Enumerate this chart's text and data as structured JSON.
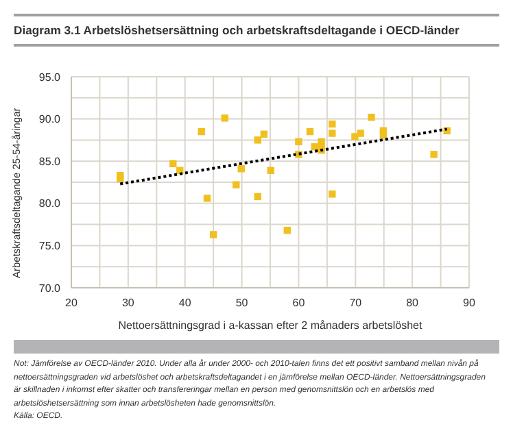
{
  "chart_data": {
    "type": "scatter",
    "title": "Diagram 3.1 Arbetslöshetsersättning och arbetskraftsdeltagande i OECD-länder",
    "xlabel": "Nettoersättningsgrad i a-kassan efter 2 månaders arbetslöshet",
    "ylabel": "Arbetskraftsdeltagande 25-54-åringar",
    "annotations": [
      "Not: Jämförelse av OECD-länder 2010. Under alla år under 2000- och 2010-talen finns det ett positivt samband mellan nivån på nettoersättningsgraden vid arbetslöshet och arbetskraftsdeltagandet i en jämförelse mellan OECD-länder. Nettoersättningsgraden är skillnaden i inkomst efter skatter och transfereringar mellan en person med genomsnittslön och en arbetslös med arbetslöshetsersättning som innan arbetslösheten hade genomsnittslön.",
      "Källa: OECD."
    ],
    "xlim": [
      20,
      90
    ],
    "xticks": [
      20,
      {
        "value": 25,
        "label": null
      },
      30,
      {
        "value": 35,
        "label": null
      },
      40,
      {
        "value": 45,
        "label": null
      },
      50,
      {
        "value": 55,
        "label": null
      },
      60,
      {
        "value": 65,
        "label": null
      },
      70,
      {
        "value": 75,
        "label": null
      },
      80,
      {
        "value": 85,
        "label": null
      },
      90
    ],
    "ylim": [
      70,
      95
    ],
    "yticks": [
      {
        "value": 70,
        "label": "70.0"
      },
      {
        "value": 72.5,
        "label": null
      },
      {
        "value": 75,
        "label": "75.0"
      },
      {
        "value": 77.5,
        "label": null
      },
      {
        "value": 80,
        "label": "80.0"
      },
      {
        "value": 82.5,
        "label": null
      },
      {
        "value": 85,
        "label": "85.0"
      },
      {
        "value": 87.5,
        "label": null
      },
      {
        "value": 90,
        "label": "90.0"
      },
      {
        "value": 92.5,
        "label": null
      },
      {
        "value": 95,
        "label": "95.0"
      }
    ],
    "grid": true,
    "marker": "square",
    "series": [
      {
        "type": "scatter",
        "color": "#f0c020",
        "x": [
          28.6,
          28.6,
          37.9,
          39.1,
          42.9,
          43.9,
          45.0,
          47.0,
          49.0,
          49.9,
          52.8,
          52.8,
          53.9,
          55.1,
          58.0,
          60.0,
          60.0,
          62.0,
          62.8,
          64.0,
          64.0,
          65.9,
          65.9,
          65.9,
          69.9,
          70.9,
          72.8,
          74.9,
          74.9,
          83.8,
          86.1,
          64.0
        ],
        "values": [
          83.3,
          82.9,
          84.7,
          83.9,
          88.5,
          80.6,
          76.3,
          90.1,
          82.2,
          84.1,
          87.5,
          80.8,
          88.2,
          83.9,
          76.8,
          87.3,
          85.8,
          88.5,
          86.7,
          87.3,
          86.3,
          89.4,
          88.3,
          81.1,
          87.9,
          88.3,
          90.2,
          88.6,
          88.1,
          85.8,
          88.6,
          86.7
        ]
      },
      {
        "type": "line",
        "color": "#000000",
        "line_style": "dotted",
        "marker": "none",
        "x": [
          28.6,
          86.1
        ],
        "values": [
          82.3,
          88.8
        ]
      }
    ]
  }
}
